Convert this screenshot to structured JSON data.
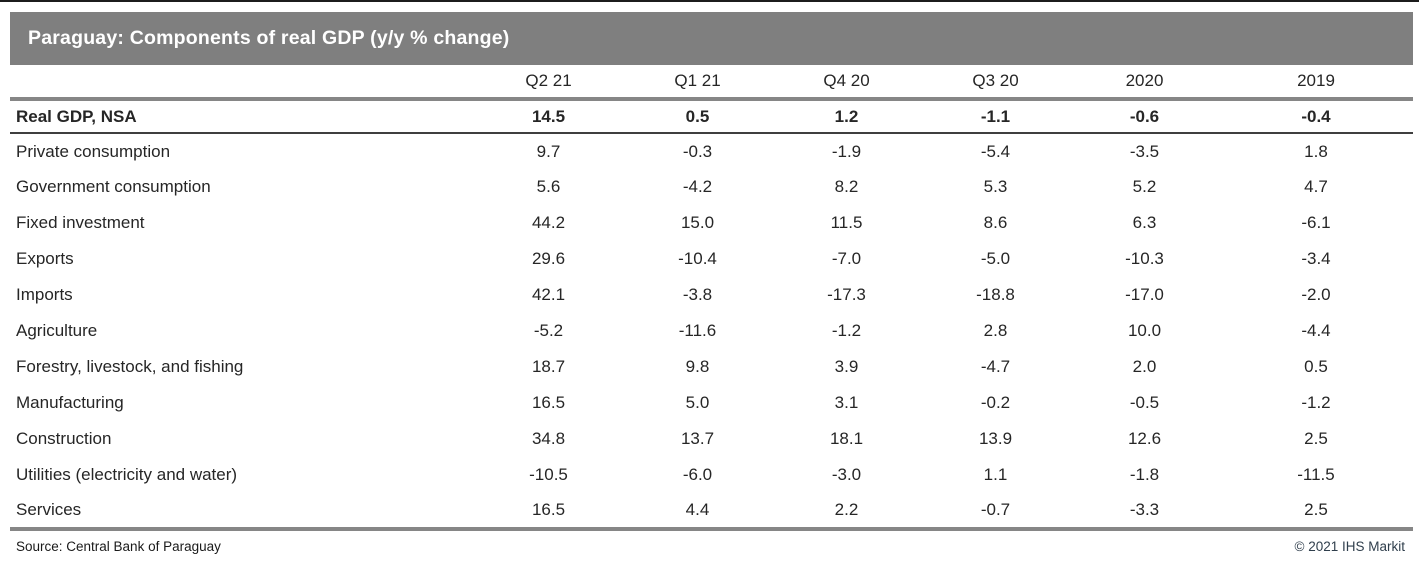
{
  "chart_data": {
    "type": "table",
    "title": "Paraguay: Components of real GDP (y/y % change)",
    "columns": [
      "Q2 21",
      "Q1 21",
      "Q4 20",
      "Q3 20",
      "2020",
      "2019"
    ],
    "rows": [
      {
        "label": "Real GDP, NSA",
        "bold": true,
        "values": [
          "14.5",
          "0.5",
          "1.2",
          "-1.1",
          "-0.6",
          "-0.4"
        ]
      },
      {
        "label": "Private consumption",
        "bold": false,
        "values": [
          "9.7",
          "-0.3",
          "-1.9",
          "-5.4",
          "-3.5",
          "1.8"
        ]
      },
      {
        "label": "Government consumption",
        "bold": false,
        "values": [
          "5.6",
          "-4.2",
          "8.2",
          "5.3",
          "5.2",
          "4.7"
        ]
      },
      {
        "label": "Fixed investment",
        "bold": false,
        "values": [
          "44.2",
          "15.0",
          "11.5",
          "8.6",
          "6.3",
          "-6.1"
        ]
      },
      {
        "label": "Exports",
        "bold": false,
        "values": [
          "29.6",
          "-10.4",
          "-7.0",
          "-5.0",
          "-10.3",
          "-3.4"
        ]
      },
      {
        "label": "Imports",
        "bold": false,
        "values": [
          "42.1",
          "-3.8",
          "-17.3",
          "-18.8",
          "-17.0",
          "-2.0"
        ]
      },
      {
        "label": "Agriculture",
        "bold": false,
        "values": [
          "-5.2",
          "-11.6",
          "-1.2",
          "2.8",
          "10.0",
          "-4.4"
        ]
      },
      {
        "label": "Forestry, livestock, and fishing",
        "bold": false,
        "values": [
          "18.7",
          "9.8",
          "3.9",
          "-4.7",
          "2.0",
          "0.5"
        ]
      },
      {
        "label": "Manufacturing",
        "bold": false,
        "values": [
          "16.5",
          "5.0",
          "3.1",
          "-0.2",
          "-0.5",
          "-1.2"
        ]
      },
      {
        "label": "Construction",
        "bold": false,
        "values": [
          "34.8",
          "13.7",
          "18.1",
          "13.9",
          "12.6",
          "2.5"
        ]
      },
      {
        "label": "Utilities (electricity and water)",
        "bold": false,
        "values": [
          "-10.5",
          "-6.0",
          "-3.0",
          "1.1",
          "-1.8",
          "-11.5"
        ]
      },
      {
        "label": "Services",
        "bold": false,
        "values": [
          "16.5",
          "4.4",
          "2.2",
          "-0.7",
          "-3.3",
          "2.5"
        ]
      }
    ],
    "source": "Source: Central Bank of Paraguay",
    "copyright": "© 2021 IHS Markit",
    "layout": {
      "grid": "off",
      "header_rule": "thick-gray",
      "gdp_row_rule": "thin-dark",
      "bottom_rule": "thick-gray"
    }
  },
  "colors": {
    "title_bar": "#7f7f7f",
    "title_text": "#ffffff",
    "rule_gray": "#868686",
    "rule_dark": "#3f3f3f",
    "rule_black": "#1c1c1c",
    "body_text": "#262626",
    "copyright": "#2f3e4c"
  }
}
